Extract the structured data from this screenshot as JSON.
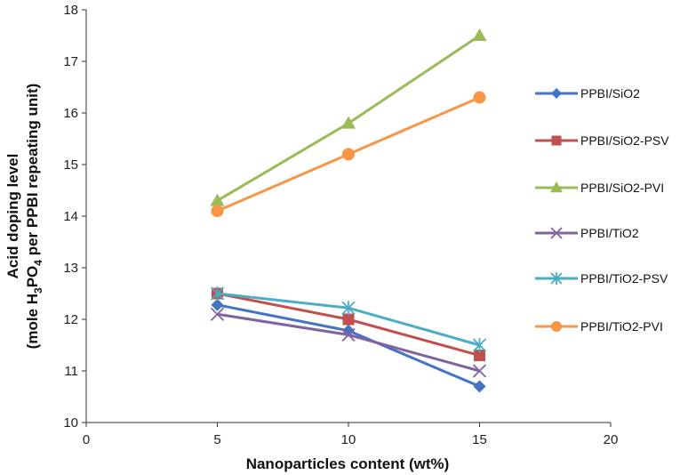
{
  "chart_data": {
    "type": "line",
    "xlabel": "Nanoparticles content (wt%)",
    "ylabel_line1": "Acid doping level",
    "ylabel_line2_prefix": "(mole H",
    "ylabel_sub1": "3",
    "ylabel_mid": "PO",
    "ylabel_sub2": "4",
    "ylabel_suffix": " per PPBI repeating unit)",
    "xlim": [
      0,
      20
    ],
    "ylim": [
      10,
      18
    ],
    "xticks": [
      0,
      5,
      10,
      15,
      20
    ],
    "yticks": [
      10,
      11,
      12,
      13,
      14,
      15,
      16,
      17,
      18
    ],
    "x": [
      5,
      10,
      15
    ],
    "legend_position": "right",
    "grid": false,
    "series": [
      {
        "name": "PPBI/SiO2",
        "values": [
          12.28,
          11.78,
          10.7
        ],
        "color": "#4472C4",
        "marker": "diamond"
      },
      {
        "name": "PPBI/SiO2-PSV",
        "values": [
          12.5,
          12.0,
          11.3
        ],
        "color": "#C0504D",
        "marker": "square"
      },
      {
        "name": "PPBI/SiO2-PVI",
        "values": [
          14.3,
          15.8,
          17.5
        ],
        "color": "#9BBB59",
        "marker": "triangle"
      },
      {
        "name": "PPBI/TiO2",
        "values": [
          12.1,
          11.7,
          11.0
        ],
        "color": "#8064A2",
        "marker": "x"
      },
      {
        "name": "PPBI/TiO2-PSV",
        "values": [
          12.5,
          12.22,
          11.5
        ],
        "color": "#4BACC6",
        "marker": "star"
      },
      {
        "name": "PPBI/TiO2-PVI",
        "values": [
          14.1,
          15.2,
          16.3
        ],
        "color": "#F79646",
        "marker": "circle"
      }
    ]
  }
}
